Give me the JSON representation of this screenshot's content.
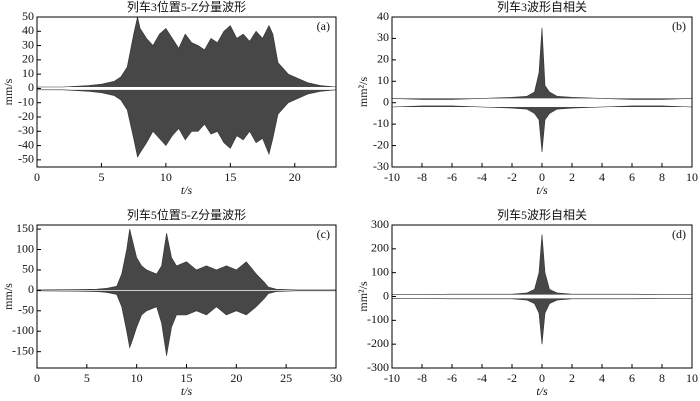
{
  "chart_data": [
    {
      "type": "line",
      "title": "列车3位置5-Z分量波形",
      "panel_label": "(a)",
      "xlabel": "t/s",
      "ylabel": "mm/s",
      "color": "#333333",
      "x": [
        0,
        2,
        4,
        5,
        6,
        6.5,
        7,
        7.5,
        7.8,
        8,
        8.5,
        9,
        9.5,
        10,
        10.5,
        11,
        11.5,
        12,
        12.5,
        13,
        13.5,
        14,
        14.5,
        15,
        15.5,
        16,
        16.5,
        17,
        17.5,
        18,
        18.3,
        18.7,
        19,
        19.5,
        20,
        21,
        22,
        23.2
      ],
      "series": [
        {
          "values": [
            1,
            1,
            2,
            3,
            5,
            8,
            15,
            38,
            50,
            42,
            35,
            30,
            38,
            42,
            35,
            28,
            38,
            32,
            30,
            27,
            35,
            32,
            40,
            44,
            35,
            38,
            33,
            40,
            35,
            44,
            38,
            18,
            15,
            10,
            8,
            4,
            2,
            1
          ]
        },
        {
          "values": [
            -1,
            -1,
            -2,
            -3,
            -5,
            -8,
            -15,
            -35,
            -48,
            -45,
            -38,
            -30,
            -35,
            -40,
            -33,
            -28,
            -36,
            -30,
            -30,
            -25,
            -32,
            -30,
            -38,
            -42,
            -33,
            -36,
            -30,
            -38,
            -35,
            -46,
            -35,
            -18,
            -15,
            -10,
            -8,
            -4,
            -2,
            -1
          ]
        }
      ],
      "xlim": [
        0,
        23.2
      ],
      "ylim": [
        -55,
        50
      ],
      "xticks": [
        0,
        5,
        10,
        15,
        20
      ],
      "yticks": [
        -50,
        -40,
        -30,
        -20,
        -10,
        0,
        10,
        20,
        30,
        40,
        50
      ]
    },
    {
      "type": "line",
      "title": "列车3波形自相关",
      "panel_label": "(b)",
      "xlabel": "t/s",
      "ylabel": "mm²/s",
      "color": "#333333",
      "x": [
        -10,
        -8,
        -6,
        -4,
        -2,
        -1,
        -0.5,
        -0.2,
        0,
        0.2,
        0.5,
        1,
        2,
        4,
        6,
        8,
        10
      ],
      "series": [
        {
          "values": [
            2,
            1.5,
            1.5,
            2,
            2.5,
            3,
            5,
            14,
            35,
            8,
            5,
            3,
            2.5,
            2,
            1.5,
            1.5,
            2
          ]
        },
        {
          "values": [
            -2,
            -1.5,
            -1.5,
            -2,
            -2.5,
            -3,
            -5,
            -8,
            -23,
            -8,
            -5,
            -3,
            -2.5,
            -2,
            -1.5,
            -1.5,
            -2
          ]
        }
      ],
      "xlim": [
        -10,
        10
      ],
      "ylim": [
        -30,
        40
      ],
      "xticks": [
        -10,
        -8,
        -6,
        -4,
        -2,
        0,
        2,
        4,
        6,
        8,
        10
      ],
      "yticks": [
        -30,
        -20,
        -10,
        0,
        10,
        20,
        30,
        40
      ]
    },
    {
      "type": "line",
      "title": "列车5位置5-Z分量波形",
      "panel_label": "(c)",
      "xlabel": "t/s",
      "ylabel": "mm/s",
      "color": "#333333",
      "x": [
        0,
        4,
        6,
        7,
        8,
        8.5,
        9,
        9.3,
        9.6,
        10,
        10.5,
        11,
        12,
        12.5,
        13,
        13.5,
        14,
        15,
        16,
        17,
        18,
        19,
        20,
        21,
        22,
        22.8,
        23.2,
        24,
        26,
        30
      ],
      "series": [
        {
          "values": [
            1,
            2,
            3,
            5,
            10,
            40,
            100,
            150,
            120,
            80,
            60,
            50,
            40,
            60,
            140,
            80,
            60,
            70,
            50,
            60,
            50,
            60,
            50,
            70,
            40,
            20,
            8,
            3,
            1,
            1
          ]
        },
        {
          "values": [
            -1,
            -2,
            -3,
            -5,
            -10,
            -40,
            -100,
            -140,
            -120,
            -90,
            -60,
            -50,
            -40,
            -80,
            -160,
            -90,
            -60,
            -60,
            -50,
            -60,
            -40,
            -60,
            -50,
            -60,
            -40,
            -20,
            -8,
            -3,
            -1,
            -1
          ]
        }
      ],
      "xlim": [
        0,
        30
      ],
      "ylim": [
        -190,
        160
      ],
      "xticks": [
        0,
        5,
        10,
        15,
        20,
        25,
        30
      ],
      "yticks": [
        -150,
        -100,
        -50,
        0,
        50,
        100,
        150
      ]
    },
    {
      "type": "line",
      "title": "列车5波形自相关",
      "panel_label": "(d)",
      "xlabel": "t/s",
      "ylabel": "mm²/s",
      "color": "#333333",
      "x": [
        -10,
        -8,
        -6,
        -4,
        -2,
        -1,
        -0.5,
        -0.2,
        0,
        0.2,
        0.5,
        1,
        2,
        4,
        6,
        8,
        10
      ],
      "series": [
        {
          "values": [
            8,
            8,
            10,
            10,
            10,
            15,
            30,
            100,
            260,
            100,
            30,
            15,
            10,
            10,
            10,
            8,
            8
          ]
        },
        {
          "values": [
            -8,
            -8,
            -10,
            -10,
            -10,
            -15,
            -30,
            -70,
            -200,
            -70,
            -30,
            -15,
            -10,
            -10,
            -10,
            -8,
            -8
          ]
        }
      ],
      "xlim": [
        -10,
        10
      ],
      "ylim": [
        -300,
        300
      ],
      "xticks": [
        -10,
        -8,
        -6,
        -4,
        -2,
        0,
        2,
        4,
        6,
        8,
        10
      ],
      "yticks": [
        -300,
        -200,
        -100,
        0,
        100,
        200,
        300
      ]
    }
  ]
}
